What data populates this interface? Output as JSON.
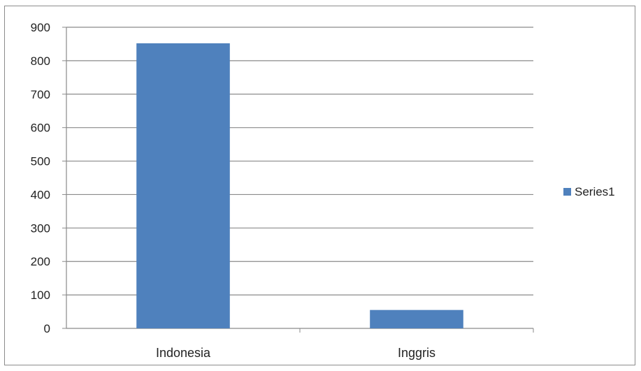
{
  "chart_data": {
    "type": "bar",
    "categories": [
      "Indonesia",
      "Inggris"
    ],
    "series": [
      {
        "name": "Series1",
        "values": [
          852,
          55
        ],
        "color": "#4f81bd"
      }
    ],
    "ylim": [
      0,
      900
    ],
    "ytick_step": 100,
    "yticks": [
      "0",
      "100",
      "200",
      "300",
      "400",
      "500",
      "600",
      "700",
      "800",
      "900"
    ],
    "grid": true,
    "legend": "right",
    "title": "",
    "xlabel": "",
    "ylabel": ""
  }
}
